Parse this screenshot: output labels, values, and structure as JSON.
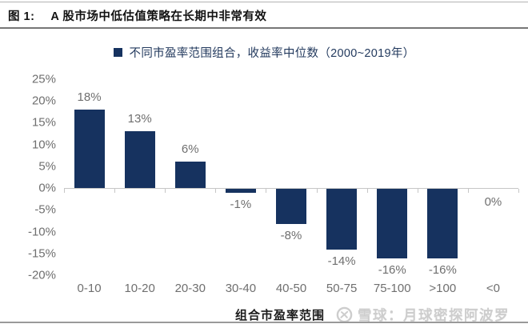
{
  "header": {
    "figure_label": "图 1:",
    "title": "A 股市场中低估值策略在长期中非常有效"
  },
  "chart_data": {
    "type": "bar",
    "title": "不同市盈率范围组合，收益率中位数（2000~2019年）",
    "categories": [
      "0-10",
      "10-20",
      "20-30",
      "30-40",
      "40-50",
      "50-75",
      "75-100",
      ">100",
      "<0"
    ],
    "values": [
      18,
      13,
      6,
      -1,
      -8,
      -14,
      -16,
      -16,
      0
    ],
    "data_labels": [
      "18%",
      "13%",
      "6%",
      "-1%",
      "-8%",
      "-14%",
      "-16%",
      "-16%",
      "0%"
    ],
    "xlabel": "组合市盈率范围",
    "ylabel": "",
    "ylim": [
      -20,
      25
    ],
    "y_tick_step": 5,
    "y_tick_labels": [
      "25%",
      "20%",
      "15%",
      "10%",
      "5%",
      "0%",
      "-5%",
      "-10%",
      "-15%",
      "-20%"
    ],
    "grid": false,
    "legend_position": "top-center",
    "bar_color": "#16325F",
    "label_color": "#6F6F6F",
    "axis_color": "#C6C6C6"
  },
  "watermark": {
    "text": "雪球：月球密探阿波罗",
    "logo": "xueqiu-logo"
  }
}
